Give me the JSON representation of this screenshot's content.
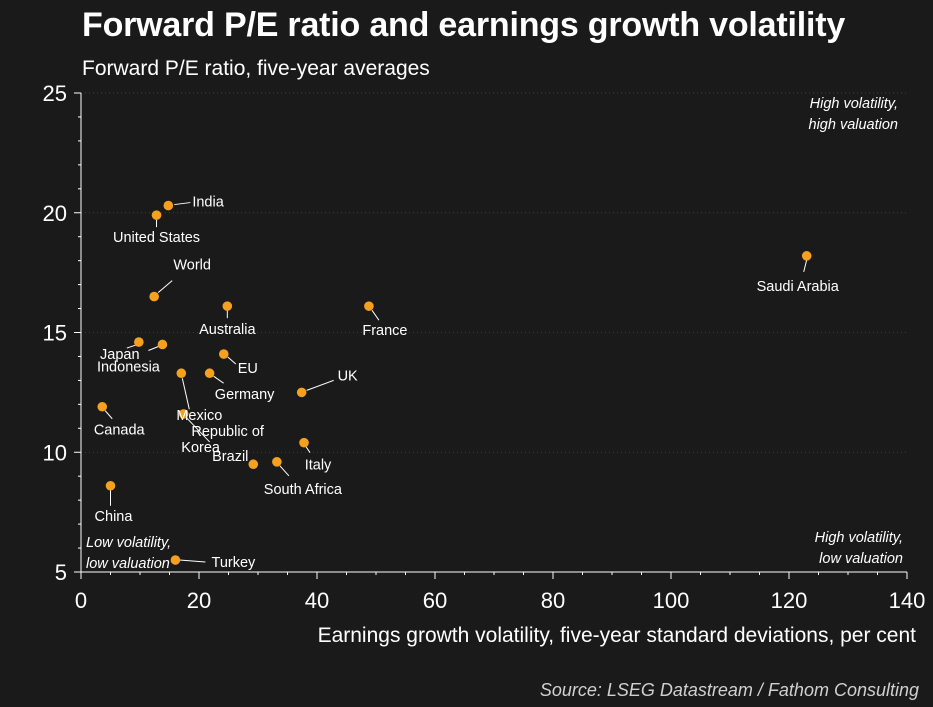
{
  "title": "Forward P/E ratio and earnings growth volatility",
  "subtitle": "Forward P/E ratio, five-year averages",
  "source": "Source: LSEG Datastream / Fathom Consulting",
  "colors": {
    "background": "#1a1a1a",
    "point": "#f5a01e",
    "text": "#ffffff",
    "grid": "#3c3c3c"
  },
  "chart_data": {
    "type": "scatter",
    "xlabel": "Earnings growth volatility, five-year standard deviations, per cent",
    "ylabel": "",
    "xlim": [
      0,
      140
    ],
    "ylim": [
      5,
      25
    ],
    "xticks": [
      0,
      20,
      40,
      60,
      80,
      100,
      120,
      140
    ],
    "yticks": [
      5,
      10,
      15,
      20,
      25
    ],
    "grid": "horizontal dotted",
    "points": [
      {
        "label": "India",
        "x": 14.8,
        "y": 20.3
      },
      {
        "label": "United States",
        "x": 12.8,
        "y": 19.9
      },
      {
        "label": "World",
        "x": 12.4,
        "y": 16.5
      },
      {
        "label": "Australia",
        "x": 24.8,
        "y": 16.1
      },
      {
        "label": "France",
        "x": 48.8,
        "y": 16.1
      },
      {
        "label": "Saudi Arabia",
        "x": 123.0,
        "y": 18.2
      },
      {
        "label": "Japan",
        "x": 9.8,
        "y": 14.6
      },
      {
        "label": "Indonesia",
        "x": 13.8,
        "y": 14.5
      },
      {
        "label": "EU",
        "x": 24.2,
        "y": 14.1
      },
      {
        "label": "Mexico",
        "x": 17.0,
        "y": 13.3
      },
      {
        "label": "Germany",
        "x": 21.8,
        "y": 13.3
      },
      {
        "label": "UK",
        "x": 37.4,
        "y": 12.5
      },
      {
        "label": "Canada",
        "x": 3.6,
        "y": 11.9
      },
      {
        "label": "Republic of Korea",
        "x": 17.4,
        "y": 11.6
      },
      {
        "label": "Brazil",
        "x": 29.2,
        "y": 9.5
      },
      {
        "label": "South Africa",
        "x": 33.2,
        "y": 9.6
      },
      {
        "label": "Italy",
        "x": 37.8,
        "y": 10.4
      },
      {
        "label": "China",
        "x": 5.0,
        "y": 8.6
      },
      {
        "label": "Turkey",
        "x": 16.0,
        "y": 5.5
      }
    ],
    "annotations": [
      {
        "text": "High volatility,",
        "text2": "high valuation",
        "position": "top-right"
      },
      {
        "text": "High volatility,",
        "text2": "low valuation",
        "position": "bottom-right"
      },
      {
        "text": "Low volatility,",
        "text2": "low valuation",
        "position": "bottom-left"
      }
    ]
  }
}
